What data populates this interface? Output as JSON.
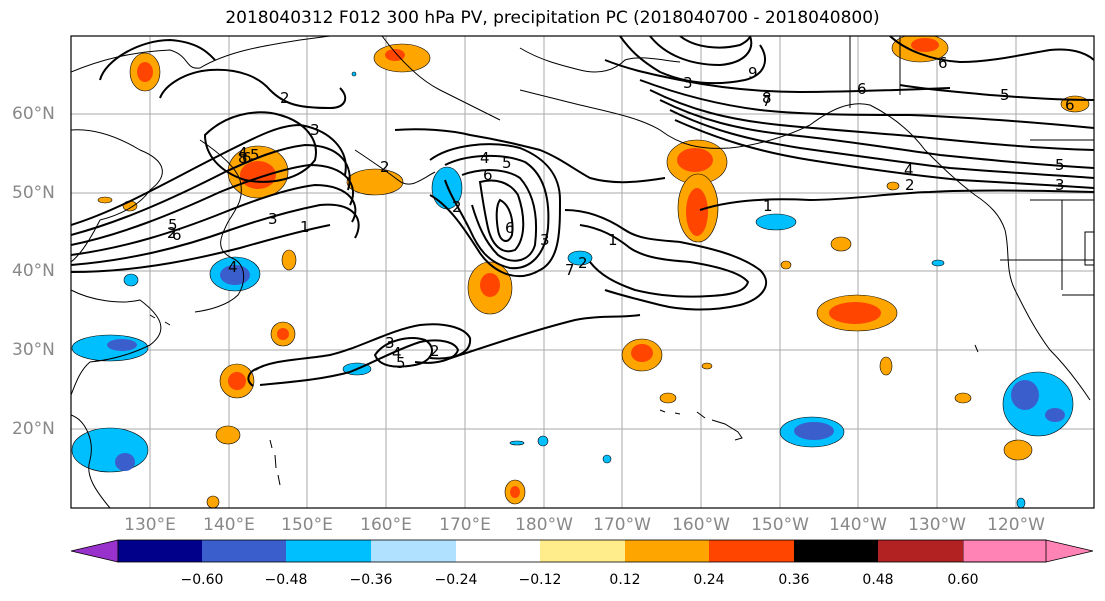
{
  "title": "2018040312 F012 300 hPa PV, precipitation PC (2018040700 - 2018040800)",
  "lat_labels": [
    "60°N",
    "50°N",
    "40°N",
    "30°N",
    "20°N"
  ],
  "lon_labels": [
    "130°E",
    "140°E",
    "150°E",
    "160°E",
    "170°E",
    "180°W",
    "170°W",
    "160°W",
    "150°W",
    "140°W",
    "130°W",
    "120°W"
  ],
  "colorbar": {
    "colors": [
      "#9932cc",
      "#00008b",
      "#3a5fcd",
      "#00bfff",
      "#b0e2ff",
      "#ffffff",
      "#ffec8b",
      "#ffa500",
      "#ff4500",
      "#b22222",
      "#ff83b4"
    ],
    "ticks": [
      "−0.60",
      "−0.48",
      "−0.36",
      "−0.24",
      "−0.12",
      "0.12",
      "0.24",
      "0.36",
      "0.48",
      "0.60"
    ]
  },
  "contour_labels": [
    "2",
    "3",
    "4",
    "5",
    "6",
    "1",
    "2",
    "3",
    "4",
    "5",
    "6",
    "4",
    "5",
    "6",
    "2",
    "3",
    "1",
    "7",
    "8",
    "9",
    "2",
    "3",
    "4",
    "5",
    "6",
    "1",
    "6",
    "5",
    "2",
    "3",
    "4",
    "5",
    "6",
    "6",
    "8",
    "3",
    "7",
    "2",
    "2"
  ]
}
